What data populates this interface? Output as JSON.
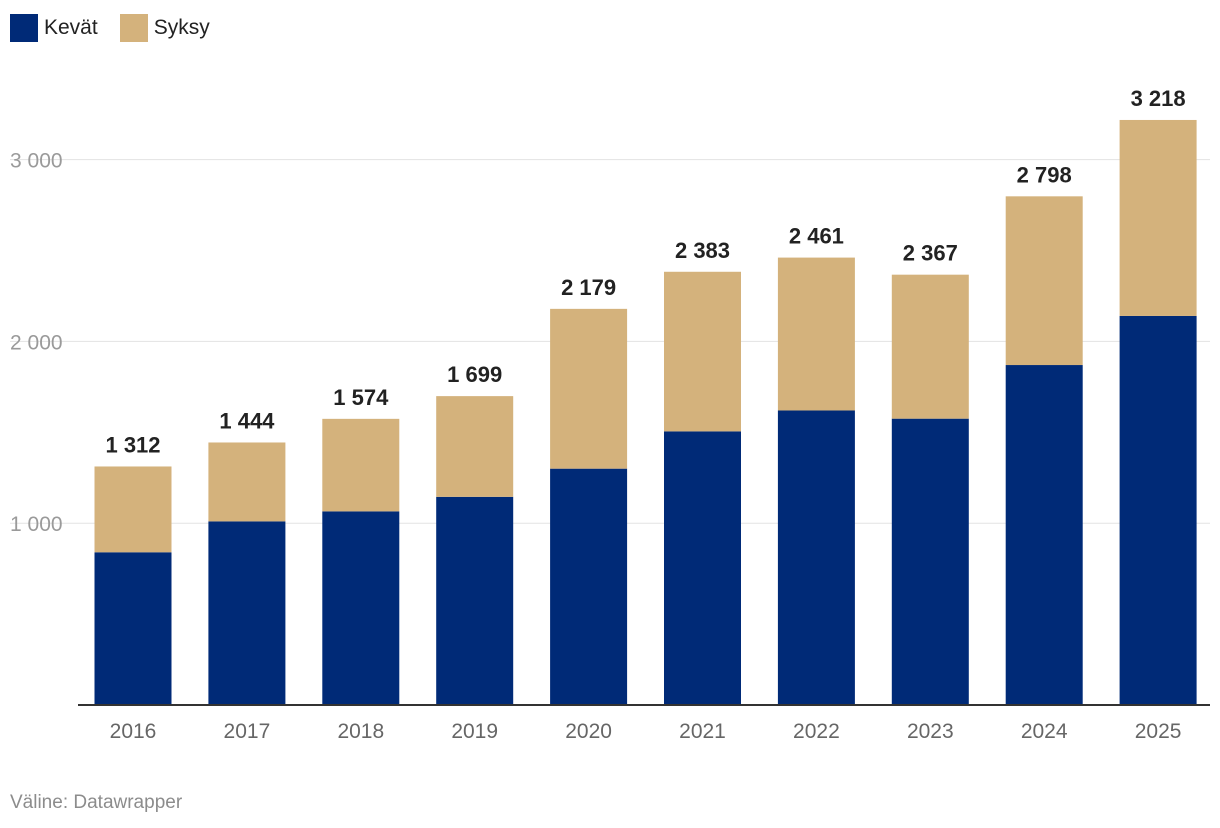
{
  "legend": {
    "items": [
      {
        "label": "Kevät",
        "color": "#002a77"
      },
      {
        "label": "Syksy",
        "color": "#d4b27c"
      }
    ]
  },
  "footer": {
    "source": "Väline: Datawrapper"
  },
  "chart_data": {
    "type": "bar",
    "stacked": true,
    "categories": [
      "2016",
      "2017",
      "2018",
      "2019",
      "2020",
      "2021",
      "2022",
      "2023",
      "2024",
      "2025"
    ],
    "series": [
      {
        "name": "Kevät",
        "color": "#002a77",
        "values": [
          840,
          1010,
          1065,
          1145,
          1300,
          1505,
          1620,
          1575,
          1870,
          2140
        ]
      },
      {
        "name": "Syksy",
        "color": "#d4b27c",
        "values": [
          472,
          434,
          509,
          554,
          879,
          878,
          841,
          792,
          928,
          1078
        ]
      }
    ],
    "totals": [
      1312,
      1444,
      1574,
      1699,
      2179,
      2383,
      2461,
      2367,
      2798,
      3218
    ],
    "total_labels": [
      "1 312",
      "1 444",
      "1 574",
      "1 699",
      "2 179",
      "2 383",
      "2 461",
      "2 367",
      "2 798",
      "3 218"
    ],
    "y_ticks": [
      1000,
      2000,
      3000
    ],
    "y_tick_labels": [
      "1 000",
      "2 000",
      "3 000"
    ],
    "ylim": [
      0,
      3350
    ],
    "grid": true,
    "legend_position": "top-left"
  }
}
